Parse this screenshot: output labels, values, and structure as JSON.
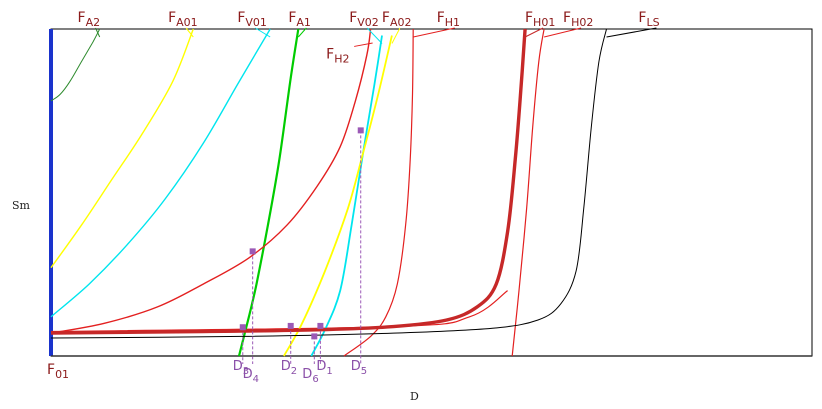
{
  "chart_data": {
    "type": "line",
    "title": "",
    "xlabel": "D",
    "ylabel": "Sm",
    "origin_label": {
      "main": "F",
      "sub": "01"
    },
    "series": [
      {
        "main": "F",
        "sub": "A2",
        "color": "#2e8b2e",
        "width": 1,
        "points": [
          [
            0.0,
            0.78
          ],
          [
            0.012,
            0.8
          ],
          [
            0.025,
            0.84
          ],
          [
            0.04,
            0.9
          ],
          [
            0.055,
            0.96
          ],
          [
            0.064,
            1.0
          ]
        ],
        "label_x": 0.048
      },
      {
        "main": "F",
        "sub": "A01",
        "color": "#ffff00",
        "width": 1.4,
        "points": [
          [
            0.0,
            0.27
          ],
          [
            0.04,
            0.4
          ],
          [
            0.08,
            0.54
          ],
          [
            0.12,
            0.68
          ],
          [
            0.16,
            0.84
          ],
          [
            0.187,
            1.0
          ]
        ],
        "label_x": 0.167
      },
      {
        "main": "F",
        "sub": "V01",
        "color": "#00e5ee",
        "width": 1.4,
        "points": [
          [
            0.0,
            0.12
          ],
          [
            0.05,
            0.22
          ],
          [
            0.1,
            0.34
          ],
          [
            0.15,
            0.48
          ],
          [
            0.2,
            0.65
          ],
          [
            0.245,
            0.83
          ],
          [
            0.288,
            1.0
          ]
        ],
        "label_x": 0.258
      },
      {
        "main": "F",
        "sub": "A1",
        "color": "#00cc00",
        "width": 2.2,
        "points": [
          [
            0.247,
            0.0
          ],
          [
            0.26,
            0.12
          ],
          [
            0.27,
            0.22
          ],
          [
            0.285,
            0.4
          ],
          [
            0.3,
            0.6
          ],
          [
            0.315,
            0.85
          ],
          [
            0.325,
            1.0
          ]
        ],
        "label_x": 0.325
      },
      {
        "main": "F",
        "sub": "V02",
        "color": "#00e5ee",
        "width": 1.8,
        "points": [
          [
            0.342,
            0.0
          ],
          [
            0.36,
            0.08
          ],
          [
            0.38,
            0.2
          ],
          [
            0.395,
            0.4
          ],
          [
            0.41,
            0.62
          ],
          [
            0.425,
            0.83
          ],
          [
            0.435,
            0.98
          ]
        ],
        "label_x": 0.405
      },
      {
        "main": "F",
        "sub": "A02",
        "color": "#ffff00",
        "width": 1.8,
        "points": [
          [
            0.306,
            0.0
          ],
          [
            0.33,
            0.1
          ],
          [
            0.36,
            0.26
          ],
          [
            0.39,
            0.45
          ],
          [
            0.41,
            0.62
          ],
          [
            0.43,
            0.8
          ],
          [
            0.448,
            0.98
          ]
        ],
        "label_x": 0.448
      },
      {
        "main": "F",
        "sub": "H2",
        "color": "#e32020",
        "width": 1.4,
        "points": [
          [
            0.0,
            0.07
          ],
          [
            0.07,
            0.1
          ],
          [
            0.14,
            0.15
          ],
          [
            0.2,
            0.22
          ],
          [
            0.26,
            0.3
          ],
          [
            0.31,
            0.4
          ],
          [
            0.35,
            0.52
          ],
          [
            0.38,
            0.64
          ],
          [
            0.4,
            0.78
          ],
          [
            0.415,
            0.92
          ],
          [
            0.42,
            1.0
          ]
        ],
        "label_x": 0.38,
        "label_y": 0.91
      },
      {
        "main": "F",
        "sub": "H1",
        "color": "#e32020",
        "width": 1.2,
        "points": [
          [
            0.385,
            0.0
          ],
          [
            0.42,
            0.06
          ],
          [
            0.44,
            0.12
          ],
          [
            0.455,
            0.22
          ],
          [
            0.466,
            0.4
          ],
          [
            0.472,
            0.6
          ],
          [
            0.475,
            0.8
          ],
          [
            0.476,
            1.0
          ]
        ],
        "label_x": 0.52
      },
      {
        "main": "F",
        "sub": "H01",
        "color": "#c62828",
        "width": 3.4,
        "points": [
          [
            0.0,
            0.07
          ],
          [
            0.2,
            0.075
          ],
          [
            0.35,
            0.08
          ],
          [
            0.45,
            0.09
          ],
          [
            0.52,
            0.11
          ],
          [
            0.56,
            0.15
          ],
          [
            0.585,
            0.22
          ],
          [
            0.6,
            0.38
          ],
          [
            0.61,
            0.6
          ],
          [
            0.617,
            0.8
          ],
          [
            0.623,
            1.0
          ]
        ],
        "label_x": 0.636
      },
      {
        "main": "F",
        "sub": "H02",
        "color": "#e32020",
        "width": 1.2,
        "points": [
          [
            0.606,
            0.0
          ],
          [
            0.615,
            0.2
          ],
          [
            0.625,
            0.45
          ],
          [
            0.633,
            0.7
          ],
          [
            0.641,
            0.9
          ],
          [
            0.648,
            1.0
          ]
        ],
        "label_x": 0.686
      },
      {
        "main": "F",
        "sub": "LS",
        "color": "#000000",
        "width": 1.0,
        "points": [
          [
            0.0,
            0.055
          ],
          [
            0.25,
            0.06
          ],
          [
            0.45,
            0.07
          ],
          [
            0.58,
            0.085
          ],
          [
            0.64,
            0.11
          ],
          [
            0.67,
            0.16
          ],
          [
            0.69,
            0.26
          ],
          [
            0.7,
            0.45
          ],
          [
            0.71,
            0.7
          ],
          [
            0.72,
            0.9
          ],
          [
            0.73,
            1.0
          ]
        ],
        "label_x": 0.785
      }
    ],
    "baseline": {
      "color": "#e32020",
      "width": 1.2,
      "points": [
        [
          0.0,
          0.075
        ],
        [
          0.45,
          0.09
        ],
        [
          0.55,
          0.12
        ],
        [
          0.6,
          0.2
        ]
      ]
    },
    "drop_lines": [
      {
        "main": "D",
        "sub": "3",
        "x": 0.252,
        "y": 0.088
      },
      {
        "main": "D",
        "sub": "4",
        "x": 0.265,
        "y": 0.32
      },
      {
        "main": "D",
        "sub": "2",
        "x": 0.315,
        "y": 0.092
      },
      {
        "main": "D",
        "sub": "6",
        "x": 0.346,
        "y": 0.06
      },
      {
        "main": "D",
        "sub": "1",
        "x": 0.354,
        "y": 0.092
      },
      {
        "main": "D",
        "sub": "5",
        "x": 0.407,
        "y": 0.69
      }
    ],
    "colors": {
      "axis_left": "#1a33cc",
      "frame": "#000000",
      "marker": "#9b59b6"
    }
  }
}
